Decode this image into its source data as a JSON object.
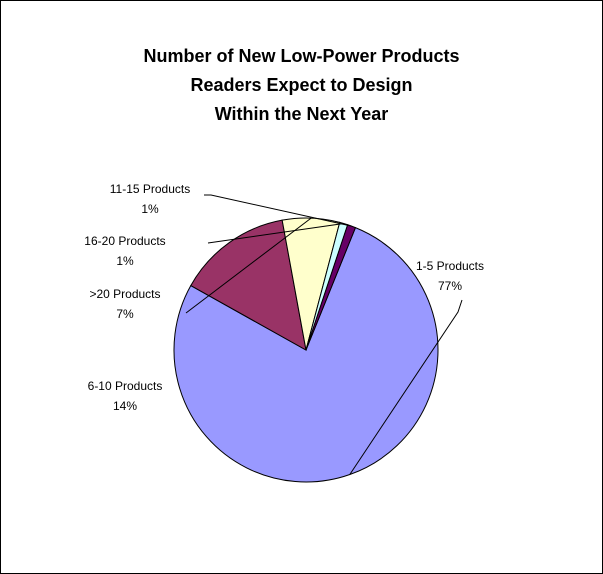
{
  "chart_data": {
    "type": "pie",
    "title_lines": [
      "Number of New Low-Power Products",
      "Readers Expect to Design",
      "Within the Next Year"
    ],
    "slices": [
      {
        "category": "1-5 Products",
        "value": 77,
        "label": "77%",
        "color": "#9999ff"
      },
      {
        "category": "6-10 Products",
        "value": 14,
        "label": "14%",
        "color": "#993366"
      },
      {
        "category": ">20 Products",
        "value": 7,
        "label": "7%",
        "color": "#ffffcc"
      },
      {
        "category": "16-20 Products",
        "value": 1,
        "label": "1%",
        "color": "#ccffff"
      },
      {
        "category": "11-15 Products",
        "value": 1,
        "label": "1%",
        "color": "#660066"
      }
    ],
    "legend": "none",
    "start_angle_deg": 22,
    "direction": "clockwise"
  }
}
